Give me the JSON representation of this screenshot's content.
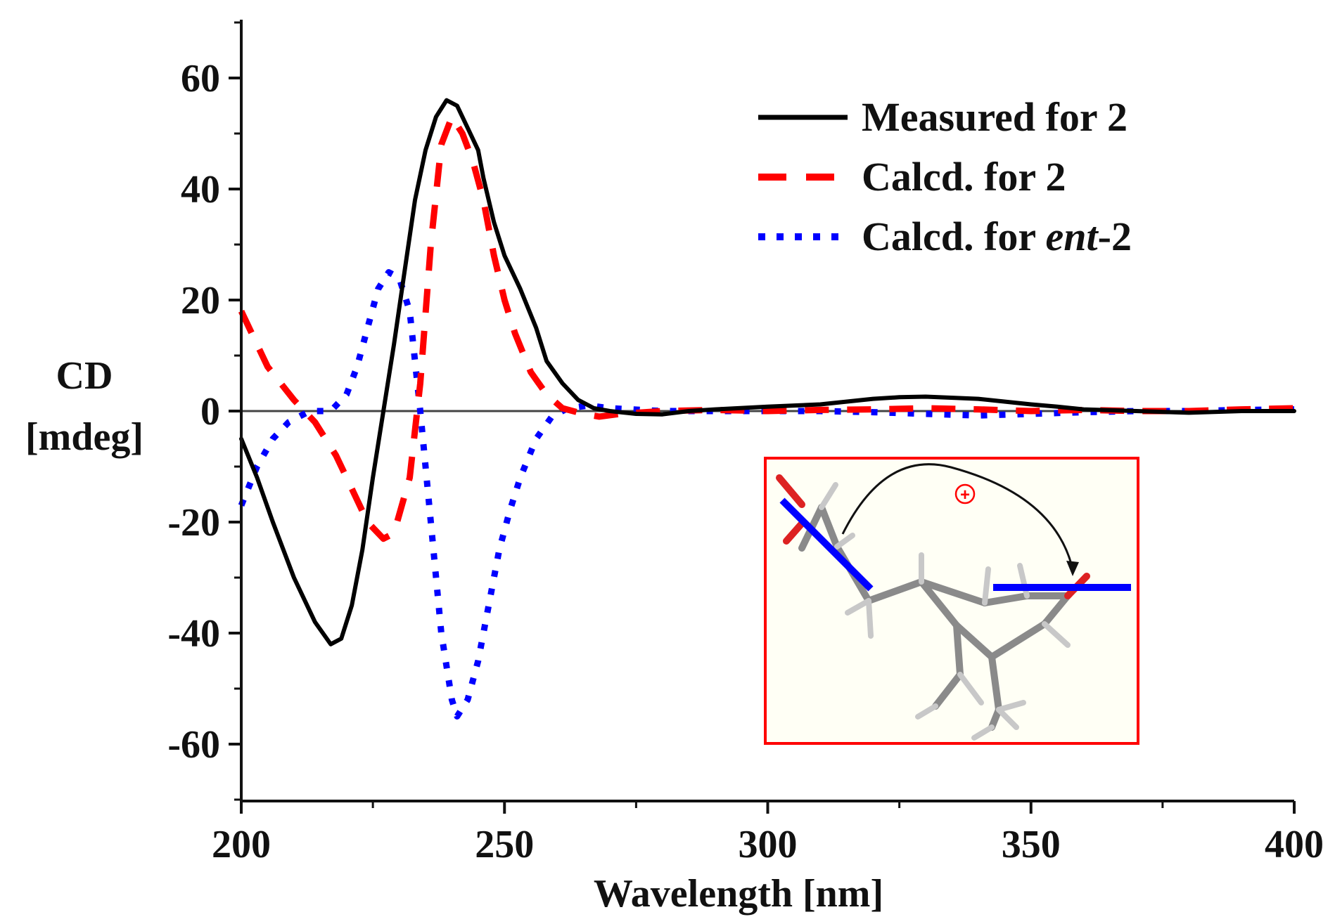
{
  "chart_data": {
    "type": "line",
    "title": "",
    "xlabel": "Wavelength [nm]",
    "ylabel_line1": "CD",
    "ylabel_line2": "[mdeg]",
    "xlim": [
      200,
      400
    ],
    "ylim": [
      -70,
      70
    ],
    "x_ticks": [
      200,
      250,
      300,
      350,
      400
    ],
    "x_tick_labels": [
      "200",
      "250",
      "300",
      "350",
      "400"
    ],
    "y_ticks": [
      60,
      40,
      20,
      0,
      -20,
      -40,
      -60
    ],
    "y_tick_labels": [
      "60",
      "40",
      "20",
      "0",
      "-20",
      "-40",
      "-60"
    ],
    "legend_position": "top-right",
    "series": [
      {
        "name": "Measured for 2",
        "legend_prefix": "Measured for 2",
        "legend_italic": "",
        "legend_suffix": "",
        "color": "#000000",
        "style": "solid",
        "points": [
          [
            200,
            -5
          ],
          [
            203,
            -12
          ],
          [
            206,
            -20
          ],
          [
            210,
            -30
          ],
          [
            214,
            -38
          ],
          [
            217,
            -42
          ],
          [
            219,
            -41
          ],
          [
            221,
            -35
          ],
          [
            223,
            -25
          ],
          [
            225,
            -12
          ],
          [
            227,
            0
          ],
          [
            229,
            12
          ],
          [
            231,
            25
          ],
          [
            233,
            38
          ],
          [
            235,
            47
          ],
          [
            237,
            53
          ],
          [
            239,
            56
          ],
          [
            241,
            55
          ],
          [
            243,
            51
          ],
          [
            245,
            47
          ],
          [
            246,
            42
          ],
          [
            248,
            34
          ],
          [
            250,
            28
          ],
          [
            253,
            22
          ],
          [
            256,
            15
          ],
          [
            258,
            9
          ],
          [
            261,
            5
          ],
          [
            264,
            2
          ],
          [
            267,
            0.5
          ],
          [
            270,
            0
          ],
          [
            275,
            -0.5
          ],
          [
            280,
            -0.6
          ],
          [
            285,
            0
          ],
          [
            290,
            0.3
          ],
          [
            300,
            0.8
          ],
          [
            310,
            1.2
          ],
          [
            320,
            2.2
          ],
          [
            325,
            2.5
          ],
          [
            330,
            2.6
          ],
          [
            340,
            2.2
          ],
          [
            350,
            1.2
          ],
          [
            355,
            0.8
          ],
          [
            360,
            0.3
          ],
          [
            370,
            0
          ],
          [
            380,
            -0.3
          ],
          [
            390,
            0
          ],
          [
            400,
            0
          ]
        ]
      },
      {
        "name": "Calcd. for 2",
        "legend_prefix": "Calcd. for 2",
        "legend_italic": "",
        "legend_suffix": "",
        "color": "#ff0000",
        "style": "dashed",
        "points": [
          [
            200,
            18
          ],
          [
            205,
            8
          ],
          [
            210,
            2
          ],
          [
            214,
            -2
          ],
          [
            218,
            -8
          ],
          [
            221,
            -14
          ],
          [
            224,
            -20
          ],
          [
            227,
            -23
          ],
          [
            229,
            -22
          ],
          [
            232,
            -12
          ],
          [
            234,
            5
          ],
          [
            236,
            30
          ],
          [
            238,
            48
          ],
          [
            240,
            53
          ],
          [
            242,
            50
          ],
          [
            244,
            45
          ],
          [
            246,
            38
          ],
          [
            248,
            28
          ],
          [
            250,
            20
          ],
          [
            252,
            14
          ],
          [
            255,
            7
          ],
          [
            258,
            3
          ],
          [
            261,
            0.5
          ],
          [
            265,
            -0.5
          ],
          [
            268,
            -1
          ],
          [
            272,
            -0.5
          ],
          [
            280,
            0
          ],
          [
            290,
            0.2
          ],
          [
            300,
            0
          ],
          [
            310,
            0.2
          ],
          [
            320,
            0.3
          ],
          [
            330,
            0.5
          ],
          [
            340,
            0.3
          ],
          [
            350,
            0
          ],
          [
            360,
            0.2
          ],
          [
            370,
            0
          ],
          [
            380,
            0
          ],
          [
            390,
            0.3
          ],
          [
            400,
            0.5
          ]
        ]
      },
      {
        "name": "Calcd. for ent-2",
        "legend_prefix": "Calcd. for ",
        "legend_italic": "ent",
        "legend_suffix": "-2",
        "color": "#0000ff",
        "style": "dotted",
        "points": [
          [
            200,
            -17
          ],
          [
            203,
            -10
          ],
          [
            206,
            -5
          ],
          [
            209,
            -2
          ],
          [
            213,
            0
          ],
          [
            217,
            0
          ],
          [
            220,
            3
          ],
          [
            222,
            8
          ],
          [
            224,
            15
          ],
          [
            226,
            22
          ],
          [
            228,
            25
          ],
          [
            230,
            24
          ],
          [
            232,
            18
          ],
          [
            234,
            0
          ],
          [
            236,
            -20
          ],
          [
            238,
            -40
          ],
          [
            240,
            -52
          ],
          [
            241,
            -55
          ],
          [
            243,
            -52
          ],
          [
            245,
            -45
          ],
          [
            247,
            -35
          ],
          [
            249,
            -25
          ],
          [
            251,
            -18
          ],
          [
            253,
            -12
          ],
          [
            256,
            -5
          ],
          [
            259,
            -1
          ],
          [
            262,
            0.5
          ],
          [
            266,
            1
          ],
          [
            270,
            0.5
          ],
          [
            280,
            0
          ],
          [
            290,
            0
          ],
          [
            300,
            0
          ],
          [
            310,
            0
          ],
          [
            320,
            -0.2
          ],
          [
            330,
            -0.5
          ],
          [
            340,
            -0.8
          ],
          [
            350,
            -0.5
          ],
          [
            360,
            -0.2
          ],
          [
            370,
            0
          ],
          [
            380,
            0
          ],
          [
            390,
            0.2
          ],
          [
            400,
            0.3
          ]
        ]
      }
    ],
    "inset": {
      "description": "3D molecular model with exciton coupling arrows",
      "sign_label": "+",
      "border_color": "#ff0000",
      "background": "#fffff5",
      "chromophore_color": "#0000ff"
    }
  }
}
